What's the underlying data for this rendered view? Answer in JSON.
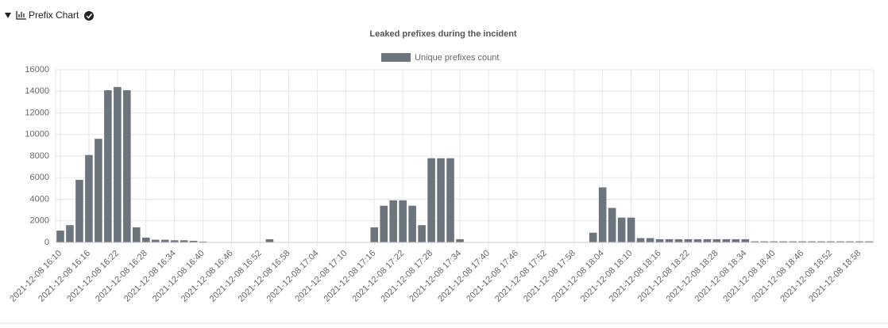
{
  "header": {
    "title": "Prefix Chart"
  },
  "chart_data": {
    "type": "bar",
    "title": "Leaked prefixes during the incident",
    "categories": [
      "2021-12-08 16:10",
      null,
      null,
      "2021-12-08 16:16",
      null,
      null,
      "2021-12-08 16:22",
      null,
      null,
      "2021-12-08 16:28",
      null,
      null,
      "2021-12-08 16:34",
      null,
      null,
      "2021-12-08 16:40",
      null,
      null,
      "2021-12-08 16:46",
      null,
      null,
      "2021-12-08 16:52",
      null,
      null,
      "2021-12-08 16:58",
      null,
      null,
      "2021-12-08 17:04",
      null,
      null,
      "2021-12-08 17:10",
      null,
      null,
      "2021-12-08 17:16",
      null,
      null,
      "2021-12-08 17:22",
      null,
      null,
      "2021-12-08 17:28",
      null,
      null,
      "2021-12-08 17:34",
      null,
      null,
      "2021-12-08 17:40",
      null,
      null,
      "2021-12-08 17:46",
      null,
      null,
      "2021-12-08 17:52",
      null,
      null,
      "2021-12-08 17:58",
      null,
      null,
      "2021-12-08 18:04",
      null,
      null,
      "2021-12-08 18:10",
      null,
      null,
      "2021-12-08 18:16",
      null,
      null,
      "2021-12-08 18:22",
      null,
      null,
      "2021-12-08 18:28",
      null,
      null,
      "2021-12-08 18:34",
      null,
      null,
      "2021-12-08 18:40",
      null,
      null,
      "2021-12-08 18:46",
      null,
      null,
      "2021-12-08 18:52",
      null,
      null,
      "2021-12-08 18:58",
      null
    ],
    "series": [
      {
        "name": "Unique prefixes count",
        "color": "#6c757d",
        "values": [
          1100,
          1600,
          5800,
          8100,
          9600,
          14100,
          14400,
          14100,
          1400,
          450,
          250,
          250,
          200,
          200,
          150,
          80,
          0,
          0,
          0,
          0,
          0,
          0,
          300,
          0,
          0,
          0,
          0,
          0,
          0,
          0,
          0,
          0,
          0,
          1400,
          3400,
          3900,
          3900,
          3400,
          1600,
          7800,
          7800,
          7800,
          300,
          0,
          0,
          0,
          0,
          0,
          0,
          0,
          0,
          0,
          0,
          0,
          0,
          0,
          900,
          5100,
          3200,
          2300,
          2300,
          400,
          400,
          300,
          300,
          300,
          300,
          300,
          300,
          300,
          300,
          300,
          300,
          100,
          100,
          100,
          100,
          100,
          100,
          100,
          100,
          100,
          100,
          100,
          100,
          100
        ]
      }
    ],
    "ylim": [
      0,
      16000
    ],
    "yticks": [
      0,
      2000,
      4000,
      6000,
      8000,
      10000,
      12000,
      14000,
      16000
    ],
    "grid": true,
    "legend": "top"
  }
}
